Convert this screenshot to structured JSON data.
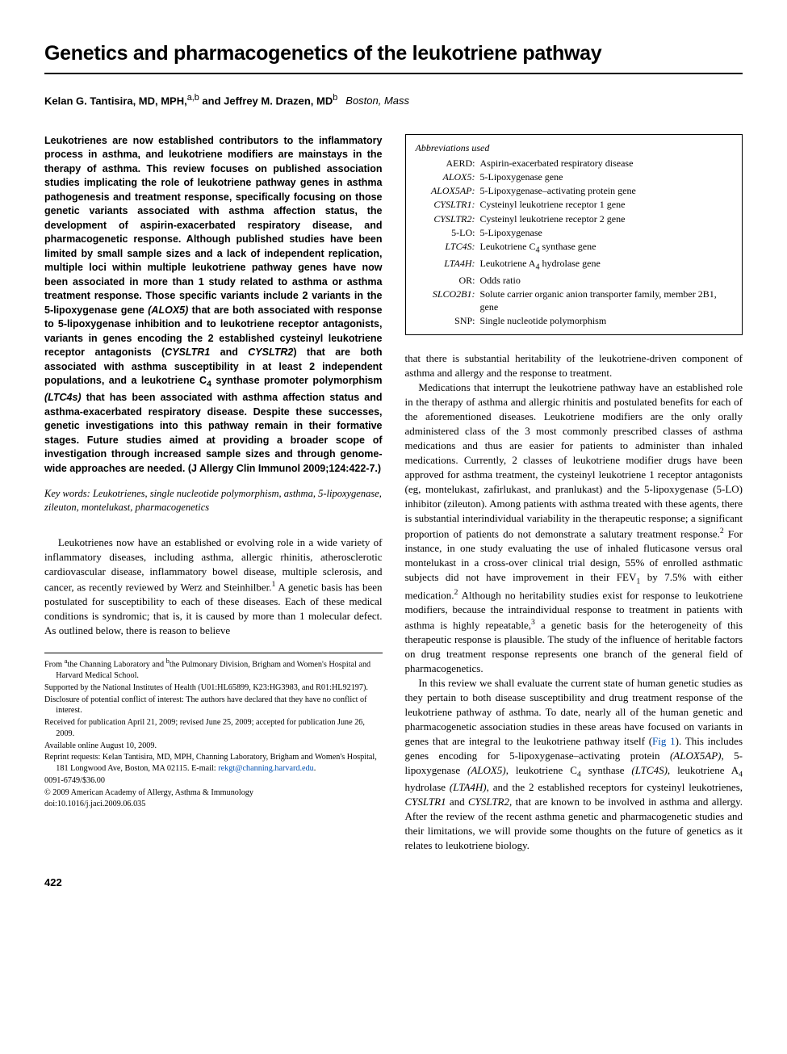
{
  "title": "Genetics and pharmacogenetics of the leukotriene pathway",
  "authors_html": "<span class='name'>Kelan G. Tantisira, MD, MPH,</span><sup>a,b</sup> <span class='name'>and Jeffrey M. Drazen, MD</span><sup>b</sup><span class='loc'>Boston, Mass</span>",
  "abstract": "Leukotrienes are now established contributors to the inflammatory process in asthma, and leukotriene modifiers are mainstays in the therapy of asthma. This review focuses on published association studies implicating the role of leukotriene pathway genes in asthma pathogenesis and treatment response, specifically focusing on those genetic variants associated with asthma affection status, the development of aspirin-exacerbated respiratory disease, and pharmacogenetic response. Although published studies have been limited by small sample sizes and a lack of independent replication, multiple loci within multiple leukotriene pathway genes have now been associated in more than 1 study related to asthma or asthma treatment response. Those specific variants include 2 variants in the 5-lipoxygenase gene <span class='ital'>(ALOX5)</span> that are both associated with response to 5-lipoxygenase inhibition and to leukotriene receptor antagonists, variants in genes encoding the 2 established cysteinyl leukotriene receptor antagonists (<span class='ital'>CYSLTR1</span> and <span class='ital'>CYSLTR2</span>) that are both associated with asthma susceptibility in at least 2 independent populations, and a leukotriene C<sub>4</sub> synthase promoter polymorphism <span class='ital'>(LTC4s)</span> that has been associated with asthma affection status and asthma-exacerbated respiratory disease. Despite these successes, genetic investigations into this pathway remain in their formative stages. Future studies aimed at providing a broader scope of investigation through increased sample sizes and through genome-wide approaches are needed. (J Allergy Clin Immunol 2009;124:422-7.)",
  "keywords_label": "Key words:",
  "keywords": "Leukotrienes, single nucleotide polymorphism, asthma, 5-lipoxygenase, zileuton, montelukast, pharmacogenetics",
  "left_body_p1": "Leukotrienes now have an established or evolving role in a wide variety of inflammatory diseases, including asthma, allergic rhinitis, atherosclerotic cardiovascular disease, inflammatory bowel disease, multiple sclerosis, and cancer, as recently reviewed by Werz and Steinhilber.<sup class='sup'>1</sup> A genetic basis has been postulated for susceptibility to each of these diseases. Each of these medical conditions is syndromic; that is, it is caused by more than 1 molecular defect. As outlined below, there is reason to believe",
  "footnotes": [
    "From <sup>a</sup>the Channing Laboratory and <sup>b</sup>the Pulmonary Division, Brigham and Women's Hospital and Harvard Medical School.",
    "Supported by the National Institutes of Health (U01:HL65899, K23:HG3983, and R01:HL92197).",
    "Disclosure of potential conflict of interest: The authors have declared that they have no conflict of interest.",
    "Received for publication April 21, 2009; revised June 25, 2009; accepted for publication June 26, 2009.",
    "Available online August 10, 2009.",
    "Reprint requests: Kelan Tantisira, MD, MPH, Channing Laboratory, Brigham and Women's Hospital, 181 Longwood Ave, Boston, MA 02115. E-mail: <span class='link'>rekgt@channing.harvard.edu</span>.",
    "0091-6749/$36.00",
    "© 2009 American Academy of Allergy, Asthma & Immunology",
    "doi:10.1016/j.jaci.2009.06.035"
  ],
  "abbrev_header": "Abbreviations used",
  "abbreviations": [
    {
      "abbr": "AERD:",
      "def": "Aspirin-exacerbated respiratory disease",
      "ital": false
    },
    {
      "abbr": "ALOX5:",
      "def": "5-Lipoxygenase gene",
      "ital": true
    },
    {
      "abbr": "ALOX5AP:",
      "def": "5-Lipoxygenase–activating protein gene",
      "ital": true
    },
    {
      "abbr": "CYSLTR1:",
      "def": "Cysteinyl leukotriene receptor 1 gene",
      "ital": true
    },
    {
      "abbr": "CYSLTR2:",
      "def": "Cysteinyl leukotriene receptor 2 gene",
      "ital": true
    },
    {
      "abbr": "5-LO:",
      "def": "5-Lipoxygenase",
      "ital": false
    },
    {
      "abbr": "LTC4S:",
      "def": "Leukotriene C<sub>4</sub> synthase gene",
      "ital": true
    },
    {
      "abbr": "LTA4H:",
      "def": "Leukotriene A<sub>4</sub> hydrolase gene",
      "ital": true
    },
    {
      "abbr": "OR:",
      "def": "Odds ratio",
      "ital": false
    },
    {
      "abbr": "SLCO2B1:",
      "def": "Solute carrier organic anion transporter family, member 2B1, gene",
      "ital": true
    },
    {
      "abbr": "SNP:",
      "def": "Single nucleotide polymorphism",
      "ital": false
    }
  ],
  "right_p1": "that there is substantial heritability of the leukotriene-driven component of asthma and allergy and the response to treatment.",
  "right_p2": "Medications that interrupt the leukotriene pathway have an established role in the therapy of asthma and allergic rhinitis and postulated benefits for each of the aforementioned diseases. Leukotriene modifiers are the only orally administered class of the 3 most commonly prescribed classes of asthma medications and thus are easier for patients to administer than inhaled medications. Currently, 2 classes of leukotriene modifier drugs have been approved for asthma treatment, the cysteinyl leukotriene 1 receptor antagonists (eg, montelukast, zafirlukast, and pranlukast) and the 5-lipoxygenase (5-LO) inhibitor (zileuton). Among patients with asthma treated with these agents, there is substantial interindividual variability in the therapeutic response; a significant proportion of patients do not demonstrate a salutary treatment response.<sup class='sup'>2</sup> For instance, in one study evaluating the use of inhaled fluticasone versus oral montelukast in a cross-over clinical trial design, 55% of enrolled asthmatic subjects did not have improvement in their FEV<sub class='sub'>1</sub> by 7.5% with either medication.<sup class='sup'>2</sup> Although no heritability studies exist for response to leukotriene modifiers, because the intraindividual response to treatment in patients with asthma is highly repeatable,<sup class='sup'>3</sup> a genetic basis for the heterogeneity of this therapeutic response is plausible. The study of the influence of heritable factors on drug treatment response represents one branch of the general field of pharmacogenetics.",
  "right_p3": "In this review we shall evaluate the current state of human genetic studies as they pertain to both disease susceptibility and drug treatment response of the leukotriene pathway of asthma. To date, nearly all of the human genetic and pharmacogenetic association studies in these areas have focused on variants in genes that are integral to the leukotriene pathway itself (<span class='link'>Fig 1</span>). This includes genes encoding for 5-lipoxygenase–activating protein <span class='ital'>(ALOX5AP)</span>, 5-lipoxygenase <span class='ital'>(ALOX5)</span>, leukotriene C<sub class='sub'>4</sub> synthase <span class='ital'>(LTC4S)</span>, leukotriene A<sub class='sub'>4</sub> hydrolase <span class='ital'>(LTA4H)</span>, and the 2 established receptors for cysteinyl leukotrienes, <span class='ital'>CYSLTR1</span> and <span class='ital'>CYSLTR2</span>, that are known to be involved in asthma and allergy. After the review of the recent asthma genetic and pharmacogenetic studies and their limitations, we will provide some thoughts on the future of genetics as it relates to leukotriene biology.",
  "page_number": "422",
  "colors": {
    "text": "#000000",
    "link": "#0050b0",
    "background": "#ffffff"
  }
}
